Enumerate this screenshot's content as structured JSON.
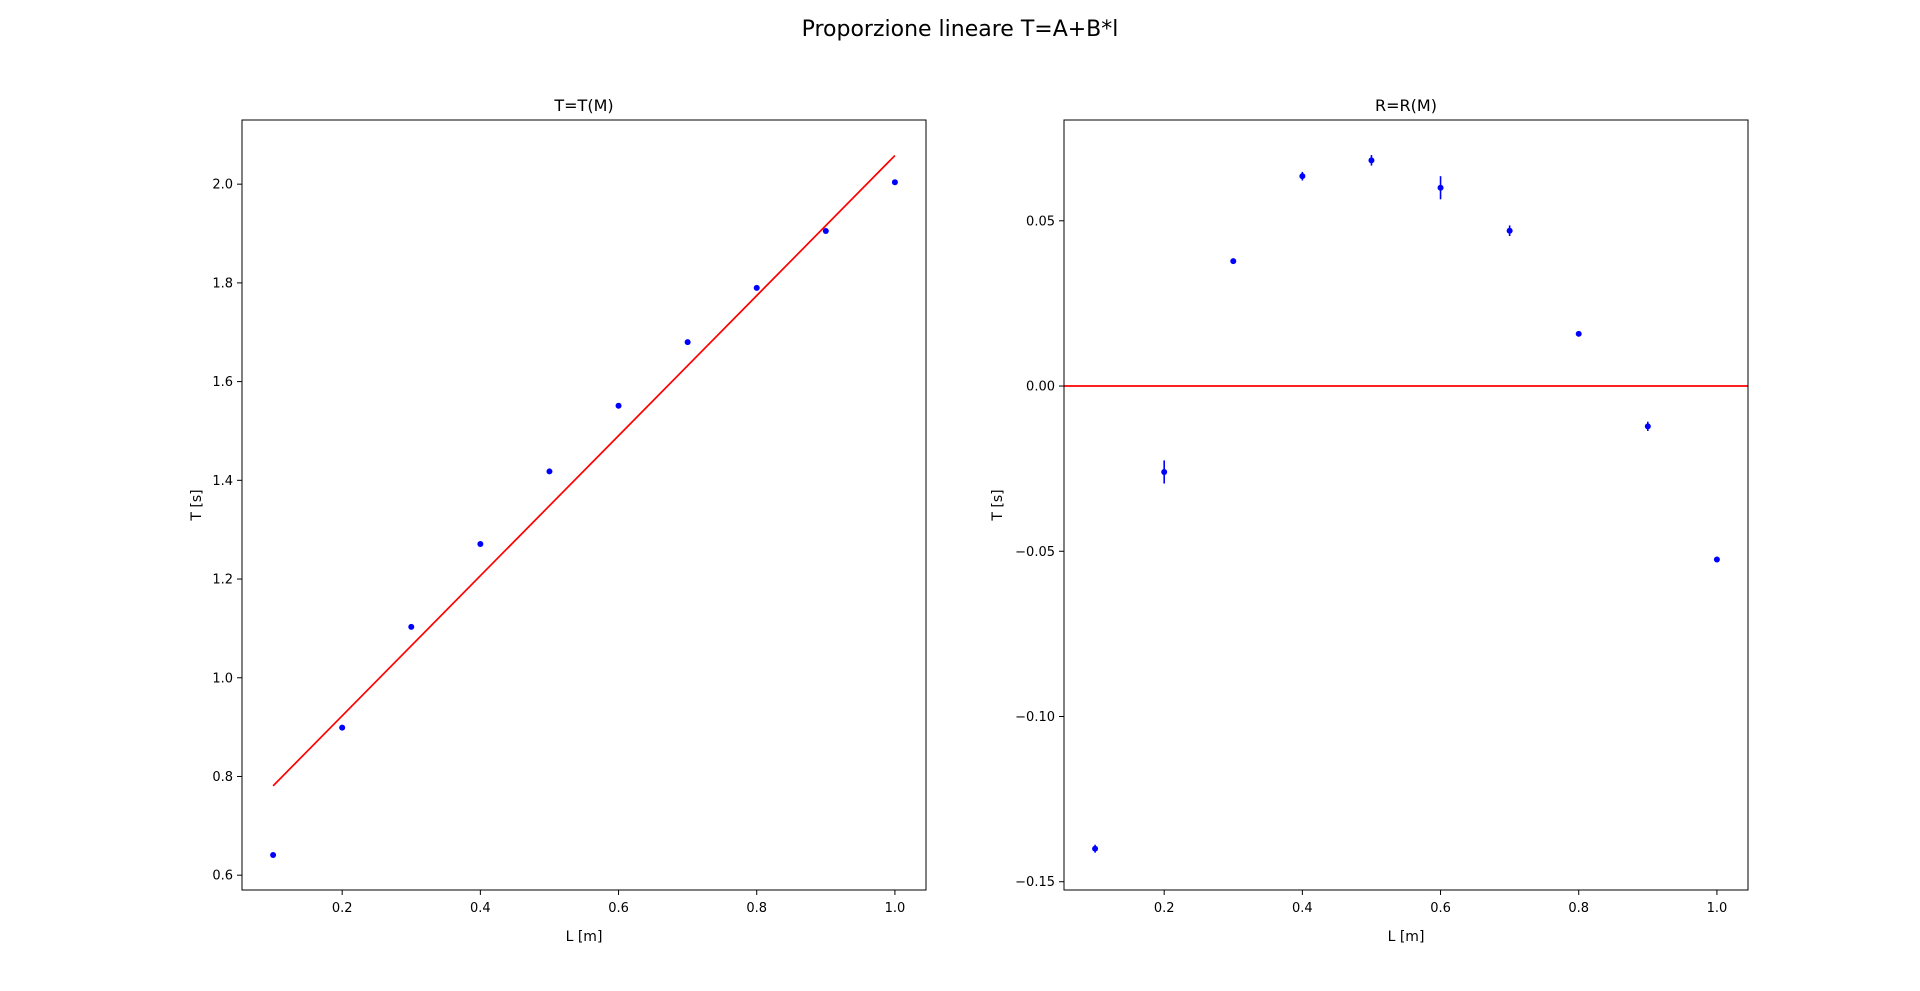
{
  "figure": {
    "suptitle": "Proporzione lineare T=A+B*l"
  },
  "chart_data": [
    {
      "type": "scatter",
      "title": "T=T(M)",
      "xlabel": "L [m]",
      "ylabel": "T [s]",
      "xlim": [
        0.055,
        1.045
      ],
      "ylim": [
        0.57,
        2.13
      ],
      "xticks": [
        0.2,
        0.4,
        0.6,
        0.8,
        1.0
      ],
      "xtick_labels": [
        "0.2",
        "0.4",
        "0.6",
        "0.8",
        "1.0"
      ],
      "yticks": [
        0.6,
        0.8,
        1.0,
        1.2,
        1.4,
        1.6,
        1.8,
        2.0
      ],
      "ytick_labels": [
        "0.6",
        "0.8",
        "1.0",
        "1.2",
        "1.4",
        "1.6",
        "1.8",
        "2.0"
      ],
      "grid": false,
      "points": {
        "x": [
          0.1,
          0.2,
          0.3,
          0.4,
          0.5,
          0.6,
          0.7,
          0.8,
          0.9,
          1.0
        ],
        "y": [
          0.641,
          0.899,
          1.103,
          1.271,
          1.418,
          1.551,
          1.68,
          1.79,
          1.905,
          2.004
        ],
        "yerr": [
          0.002,
          0.002,
          0.002,
          0.002,
          0.002,
          0.002,
          0.002,
          0.002,
          0.002,
          0.002
        ],
        "color": "#0000ff"
      },
      "line": {
        "x": [
          0.1,
          1.0
        ],
        "y": [
          0.781,
          2.058
        ],
        "color": "#ff0000"
      }
    },
    {
      "type": "scatter",
      "title": "R=R(M)",
      "xlabel": "L [m]",
      "ylabel": "T [s]",
      "xlim": [
        0.055,
        1.045
      ],
      "ylim": [
        -0.1525,
        0.0805
      ],
      "xticks": [
        0.2,
        0.4,
        0.6,
        0.8,
        1.0
      ],
      "xtick_labels": [
        "0.2",
        "0.4",
        "0.6",
        "0.8",
        "1.0"
      ],
      "yticks": [
        -0.15,
        -0.1,
        -0.05,
        0.0,
        0.05
      ],
      "ytick_labels": [
        "−0.15",
        "−0.10",
        "−0.05",
        "0.00",
        "0.05"
      ],
      "grid": false,
      "points": {
        "x": [
          0.1,
          0.2,
          0.3,
          0.4,
          0.5,
          0.6,
          0.7,
          0.8,
          0.9,
          1.0
        ],
        "y": [
          -0.14,
          -0.026,
          0.0378,
          0.0635,
          0.0683,
          0.06,
          0.047,
          0.0158,
          -0.0122,
          -0.0525
        ],
        "yerr": [
          0.0012,
          0.0035,
          0.0008,
          0.0013,
          0.0016,
          0.0035,
          0.0016,
          0.0006,
          0.0014,
          0.0008
        ],
        "color": "#0000ff"
      },
      "line": {
        "x": [
          0.055,
          1.045
        ],
        "y": [
          0.0,
          0.0
        ],
        "color": "#ff0000"
      }
    }
  ]
}
